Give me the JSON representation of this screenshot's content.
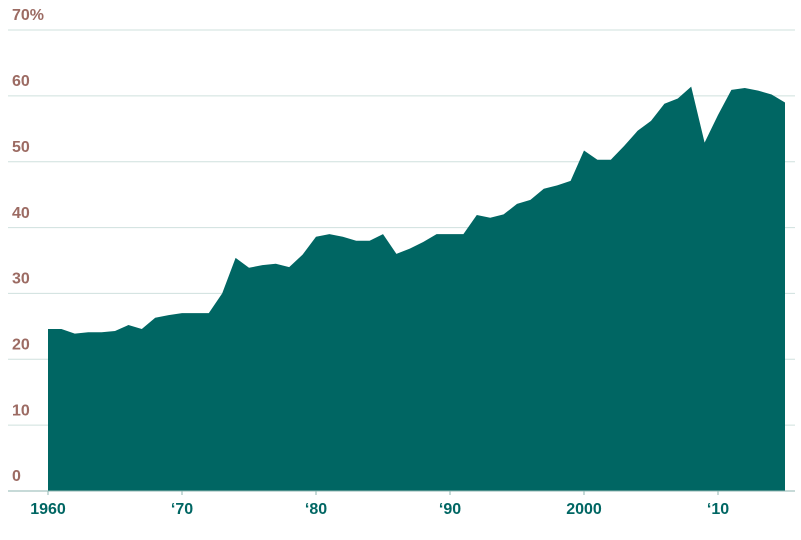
{
  "chart_data": {
    "type": "area",
    "x": [
      1960,
      1961,
      1962,
      1963,
      1964,
      1965,
      1966,
      1967,
      1968,
      1969,
      1970,
      1971,
      1972,
      1973,
      1974,
      1975,
      1976,
      1977,
      1978,
      1979,
      1980,
      1981,
      1982,
      1983,
      1984,
      1985,
      1986,
      1987,
      1988,
      1989,
      1990,
      1991,
      1992,
      1993,
      1994,
      1995,
      1996,
      1997,
      1998,
      1999,
      2000,
      2001,
      2002,
      2003,
      2004,
      2005,
      2006,
      2007,
      2008,
      2009,
      2010,
      2011,
      2012,
      2013,
      2014,
      2015
    ],
    "values": [
      24.6,
      24.6,
      23.9,
      24.1,
      24.1,
      24.3,
      25.2,
      24.6,
      26.3,
      26.7,
      27,
      27,
      27,
      30,
      35.4,
      33.9,
      34.3,
      34.5,
      34,
      35.9,
      38.6,
      39,
      38.6,
      38,
      38,
      39,
      36,
      36.8,
      37.8,
      39,
      39,
      39,
      41.9,
      41.5,
      42,
      43.6,
      44.2,
      45.9,
      46.4,
      47.1,
      51.7,
      50.3,
      50.3,
      52.4,
      54.7,
      56.2,
      58.8,
      59.6,
      61.4,
      52.9,
      57.1,
      60.9,
      61.2,
      60.8,
      60.2,
      59
    ],
    "color": "#006663",
    "xlim": [
      1960,
      2015
    ],
    "xticks": [
      1960,
      {
        "value": 1970,
        "label": "‘70"
      },
      {
        "value": 1980,
        "label": "‘80"
      },
      {
        "value": 1990,
        "label": "‘90"
      },
      2000,
      {
        "value": 2010,
        "label": "‘10"
      }
    ],
    "ylim": [
      0,
      70
    ],
    "yticks": [
      0,
      10,
      20,
      30,
      40,
      50,
      60,
      {
        "value": 70,
        "label": "70%"
      }
    ],
    "grid": true
  }
}
